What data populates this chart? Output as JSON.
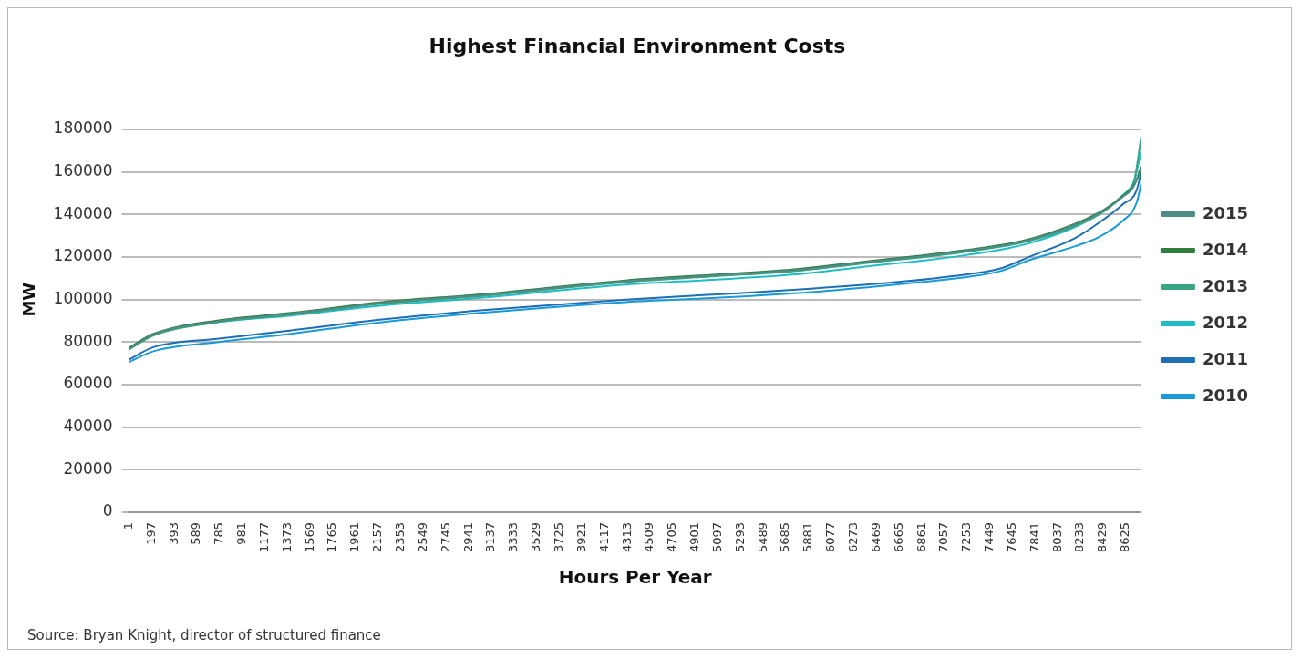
{
  "chart_data": {
    "type": "line",
    "title": "Highest Financial Environment Costs",
    "xlabel": "Hours Per Year",
    "ylabel": "MW",
    "annotations": [
      "Source: Bryan Knight, director of structured finance"
    ],
    "xlim": [
      1,
      8760
    ],
    "xticks": [
      1,
      197,
      393,
      589,
      785,
      981,
      1177,
      1373,
      1569,
      1765,
      1961,
      2157,
      2353,
      2549,
      2745,
      2941,
      3137,
      3333,
      3529,
      3725,
      3921,
      4117,
      4313,
      4509,
      4705,
      4901,
      5097,
      5293,
      5489,
      5685,
      5881,
      6077,
      6273,
      6469,
      6665,
      6861,
      7057,
      7253,
      7449,
      7645,
      7841,
      8037,
      8233,
      8429,
      8625
    ],
    "ylim": [
      0,
      200000
    ],
    "yticks": [
      0,
      20000,
      40000,
      60000,
      80000,
      100000,
      120000,
      140000,
      160000,
      180000
    ],
    "grid": "y",
    "legend": "right",
    "marker": "none",
    "line_style": "solid",
    "series": [
      {
        "name": "2010",
        "color": "#1a9ad6",
        "x": [
          1,
          213,
          777,
          1406,
          2191,
          3040,
          4299,
          5083,
          5900,
          6717,
          7126,
          7534,
          7804,
          8188,
          8392,
          8597,
          8719,
          8760
        ],
        "values": [
          70600,
          75700,
          80000,
          83900,
          89400,
          93700,
          98800,
          100800,
          103500,
          107500,
          109800,
          113300,
          118800,
          125100,
          129400,
          136900,
          145500,
          154900
        ]
      },
      {
        "name": "2011",
        "color": "#1f6fb5",
        "x": [
          1,
          213,
          777,
          1406,
          2191,
          3040,
          4299,
          5083,
          5900,
          6717,
          7126,
          7534,
          7804,
          8188,
          8392,
          8597,
          8719,
          8760
        ],
        "values": [
          71800,
          77600,
          81600,
          85500,
          90600,
          94900,
          100000,
          102400,
          105100,
          108600,
          111000,
          114500,
          120400,
          129000,
          136100,
          144700,
          151400,
          160400
        ]
      },
      {
        "name": "2012",
        "color": "#22bcc4",
        "x": [
          1,
          213,
          777,
          1406,
          2191,
          3040,
          4299,
          5083,
          5737,
          6390,
          7215,
          7804,
          8392,
          8597,
          8695,
          8760
        ],
        "values": [
          76900,
          83500,
          89400,
          92500,
          97200,
          100800,
          107000,
          109400,
          111700,
          115600,
          120700,
          126700,
          140000,
          149000,
          155500,
          170000
        ]
      },
      {
        "name": "2013",
        "color": "#3aa584",
        "x": [
          1,
          213,
          777,
          1406,
          2191,
          3040,
          4299,
          5083,
          5737,
          6390,
          7215,
          7804,
          8392,
          8597,
          8695,
          8760
        ],
        "values": [
          76500,
          83100,
          89400,
          92900,
          98000,
          101600,
          108200,
          111000,
          113300,
          117200,
          122300,
          127800,
          140000,
          148600,
          155000,
          177000
        ]
      },
      {
        "name": "2014",
        "color": "#2e7d3e",
        "x": [
          1,
          213,
          777,
          1406,
          2191,
          3040,
          4299,
          5083,
          5737,
          6390,
          7215,
          7804,
          8392,
          8597,
          8695,
          8760
        ],
        "values": [
          77300,
          83900,
          90200,
          93700,
          98800,
          102400,
          109000,
          111800,
          114100,
          118000,
          123100,
          128600,
          140800,
          148600,
          153700,
          161200
        ]
      },
      {
        "name": "2015",
        "color": "#4e8c88",
        "x": [
          1,
          213,
          777,
          1406,
          2191,
          3040,
          4299,
          5083,
          5737,
          6390,
          7215,
          7804,
          8392,
          8597,
          8695,
          8760
        ],
        "values": [
          76900,
          83500,
          89800,
          93300,
          98400,
          102000,
          108600,
          111400,
          113700,
          117600,
          122700,
          128200,
          140400,
          148200,
          153300,
          163000
        ]
      }
    ]
  }
}
